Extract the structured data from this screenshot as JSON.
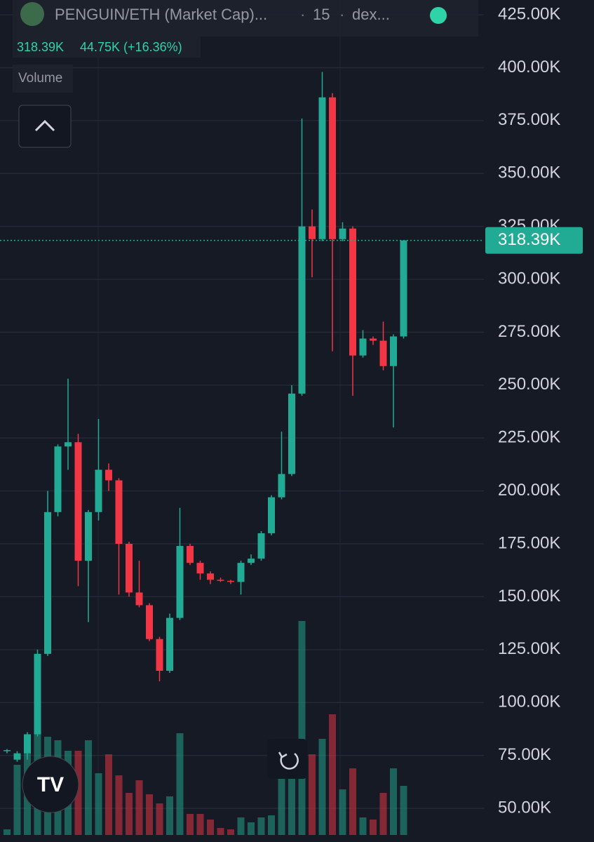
{
  "chart_data": {
    "type": "candlestick",
    "title": "PENGUIN/ETH (Market Cap)...",
    "interval": "15",
    "source": "dex...",
    "last_value": 318390,
    "last_value_label": "318.39K",
    "change_label": "44.75K (+16.36%)",
    "volume_label": "Volume",
    "up_color": "#22ab94",
    "down_color": "#f23645",
    "ylim": [
      37400,
      432000
    ],
    "yticks": [
      {
        "value": 50000,
        "label": "50.00K"
      },
      {
        "value": 75000,
        "label": "75.00K"
      },
      {
        "value": 100000,
        "label": "100.00K"
      },
      {
        "value": 125000,
        "label": "125.00K"
      },
      {
        "value": 150000,
        "label": "150.00K"
      },
      {
        "value": 175000,
        "label": "175.00K"
      },
      {
        "value": 200000,
        "label": "200.00K"
      },
      {
        "value": 225000,
        "label": "225.00K"
      },
      {
        "value": 250000,
        "label": "250.00K"
      },
      {
        "value": 275000,
        "label": "275.00K"
      },
      {
        "value": 300000,
        "label": "300.00K"
      },
      {
        "value": 325000,
        "label": "325.00K"
      },
      {
        "value": 350000,
        "label": "350.00K"
      },
      {
        "value": 375000,
        "label": "375.00K"
      },
      {
        "value": 400000,
        "label": "400.00K"
      },
      {
        "value": 425000,
        "label": "425.00K"
      }
    ],
    "grid": true,
    "open": [
      77000,
      73000,
      76000,
      85000,
      123000,
      190000,
      221000,
      223000,
      167000,
      190000,
      210000,
      205000,
      175000,
      152000,
      146000,
      130000,
      115000,
      140000,
      174000,
      166000,
      161000,
      158000,
      157500,
      157000,
      166000,
      168000,
      180000,
      197000,
      208000,
      246000,
      325000,
      319000,
      386000,
      319000,
      324000,
      264000,
      272000,
      271000,
      259000,
      273000
    ],
    "high": [
      78000,
      77000,
      86000,
      125000,
      200000,
      222000,
      253000,
      227000,
      191000,
      234000,
      213000,
      206000,
      176000,
      167000,
      147000,
      131000,
      142000,
      192000,
      175000,
      167000,
      162000,
      159000,
      158000,
      167000,
      170000,
      181000,
      198000,
      228000,
      250000,
      376000,
      333000,
      398000,
      388000,
      327000,
      325000,
      276000,
      273000,
      280000,
      274000,
      318390
    ],
    "low": [
      76000,
      72000,
      73000,
      84000,
      122000,
      188000,
      210000,
      155000,
      138000,
      186000,
      200000,
      151000,
      150000,
      145000,
      129000,
      110000,
      114000,
      139000,
      165000,
      158000,
      156000,
      157000,
      156000,
      151000,
      165000,
      167000,
      179000,
      196000,
      207000,
      245000,
      301000,
      318000,
      266000,
      318000,
      245000,
      263000,
      269000,
      257000,
      230000,
      272000
    ],
    "close": [
      77500,
      76000,
      85000,
      123000,
      190000,
      221000,
      223000,
      167000,
      190000,
      210000,
      205000,
      175000,
      152000,
      146000,
      130000,
      115000,
      140000,
      174000,
      166000,
      161000,
      158000,
      157500,
      157000,
      166000,
      168000,
      180000,
      197000,
      208000,
      246000,
      325000,
      319000,
      386000,
      319000,
      324000,
      264000,
      272000,
      271000,
      259000,
      273000,
      318390
    ],
    "volume": [
      8,
      100,
      140,
      205,
      140,
      135,
      120,
      120,
      135,
      88,
      115,
      85,
      60,
      78,
      58,
      45,
      55,
      145,
      30,
      30,
      22,
      10,
      8,
      25,
      18,
      25,
      28,
      90,
      110,
      305,
      115,
      137,
      172,
      65,
      95,
      25,
      22,
      60,
      95,
      70
    ]
  }
}
